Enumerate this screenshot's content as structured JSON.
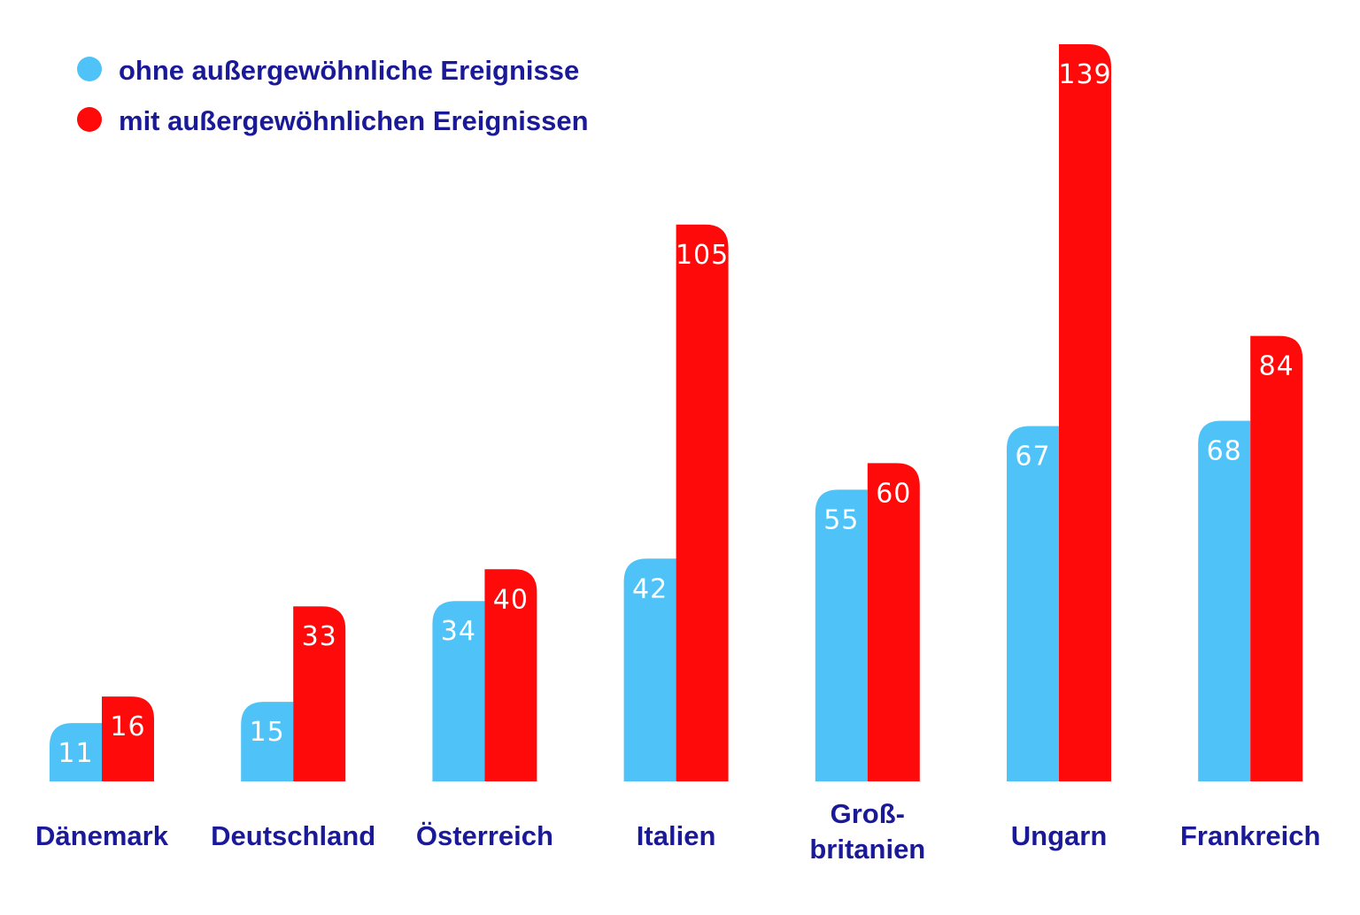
{
  "chart_data": {
    "type": "bar",
    "categories": [
      "Dänemark",
      "Deutschland",
      "Österreich",
      "Italien",
      "Groß-\nbritanien",
      "Ungarn",
      "Frankreich"
    ],
    "series": [
      {
        "name": "ohne außergewöhnliche Ereignisse",
        "color": "#4fc3f7",
        "values": [
          11,
          15,
          34,
          42,
          55,
          67,
          68
        ]
      },
      {
        "name": "mit außergewöhnlichen Ereignissen",
        "color": "#ff0a0a",
        "values": [
          16,
          33,
          40,
          105,
          60,
          139,
          84
        ]
      }
    ],
    "ylim": [
      0,
      139
    ],
    "grid": false,
    "legend_position": "top-left",
    "text_color": "#1a1a99"
  }
}
